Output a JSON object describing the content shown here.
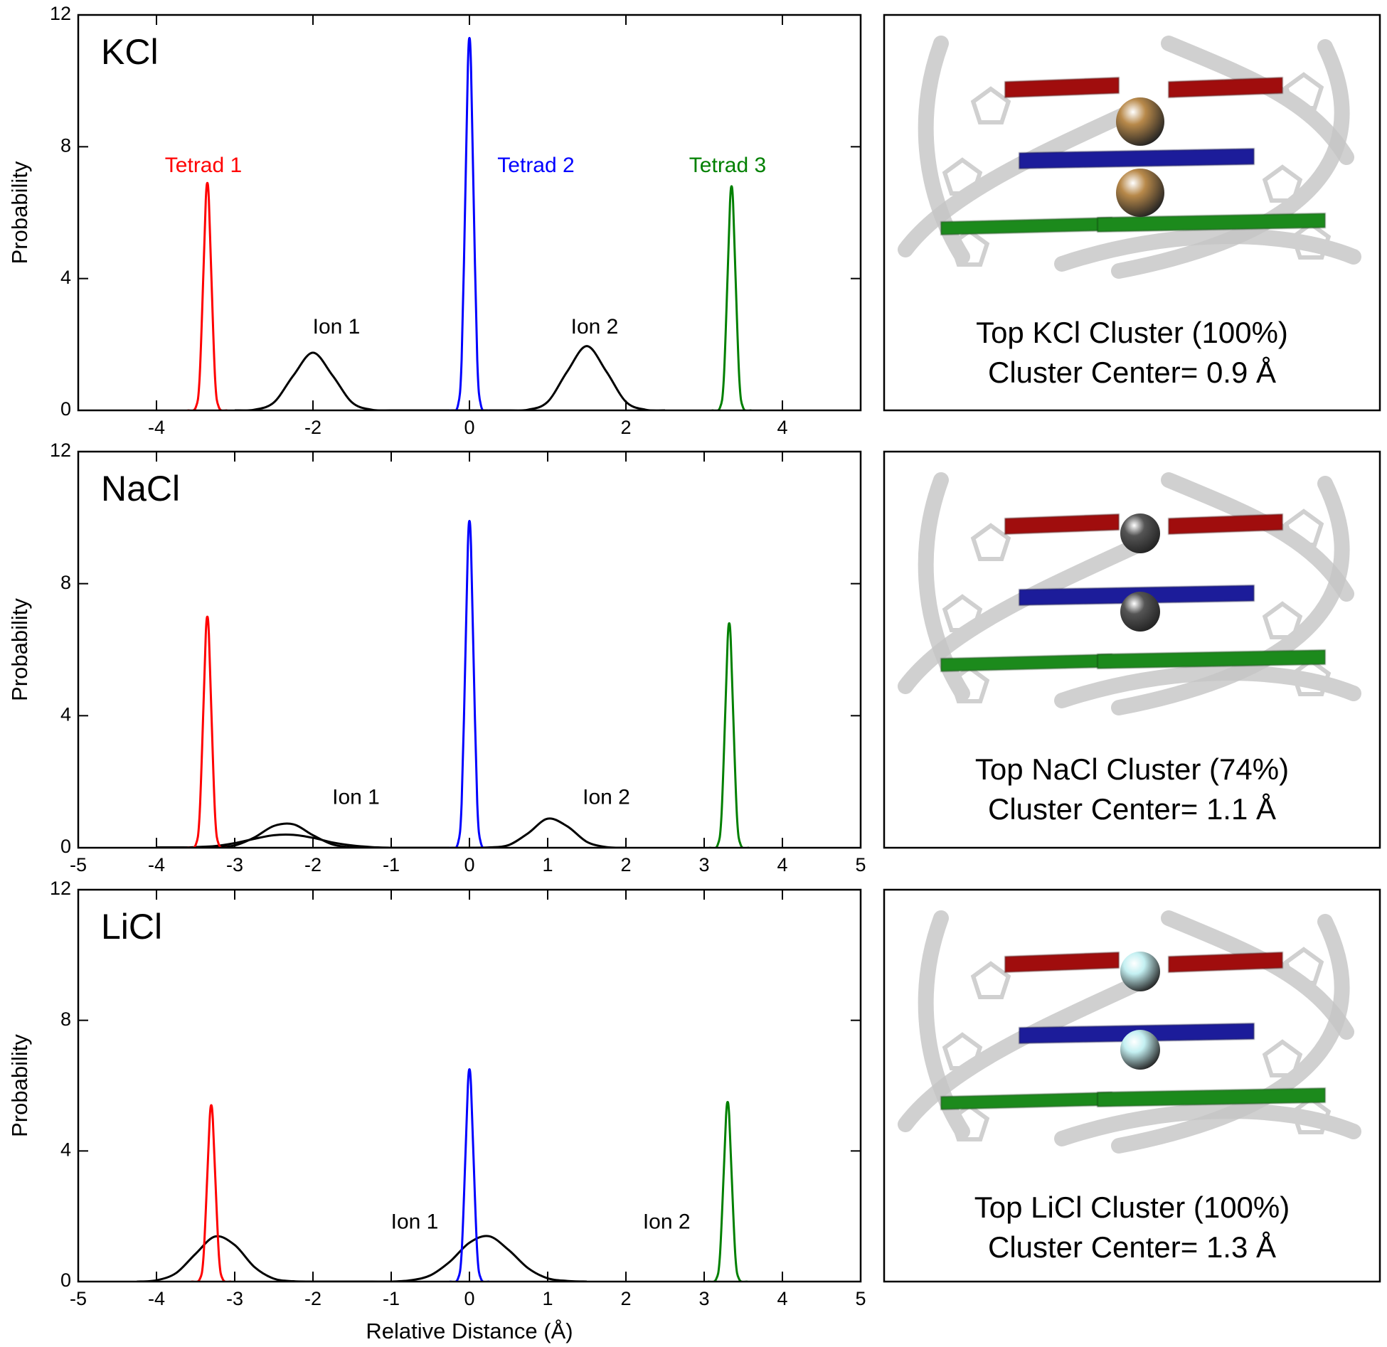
{
  "chart_data": [
    {
      "type": "line",
      "label": "KCl",
      "ylabel": "Probability",
      "xlim": [
        -5,
        5
      ],
      "ylim": [
        0,
        12
      ],
      "xticks": [
        -4,
        -2,
        0,
        2,
        4
      ],
      "yticks": [
        0,
        4,
        8,
        12
      ],
      "annotations": [
        {
          "text": "Tetrad 1",
          "color": "#ff0000"
        },
        {
          "text": "Tetrad 2",
          "color": "#0000ff"
        },
        {
          "text": "Tetrad 3",
          "color": "#008000"
        },
        {
          "text": "Ion 1",
          "color": "#000000"
        },
        {
          "text": "Ion 2",
          "color": "#000000"
        }
      ],
      "series": [
        {
          "color": "#000000",
          "x": [
            -3,
            -2.75,
            -2.5,
            -2.25,
            -2,
            -1.75,
            -1.5,
            -1.25,
            -1,
            -0.75,
            -0.5,
            -0.25,
            0,
            0.25,
            0.5,
            0.75,
            1,
            1.25,
            1.5,
            1.75,
            2,
            2.25,
            2.5
          ],
          "values": [
            0,
            0.02,
            0.24,
            1.06,
            1.75,
            1.06,
            0.24,
            0.02,
            0,
            0,
            0,
            0,
            0,
            0,
            0,
            0.02,
            0.26,
            1.18,
            1.95,
            1.18,
            0.26,
            0.02,
            0
          ]
        },
        {
          "color": "#ff0000",
          "x": [
            -3.6,
            -3.5,
            -3.45,
            -3.4,
            -3.37,
            -3.35,
            -3.33,
            -3.3,
            -3.25,
            -3.2,
            -3.1
          ],
          "values": [
            0,
            0.08,
            0.93,
            4.19,
            6.37,
            6.9,
            6.37,
            4.19,
            0.93,
            0.08,
            0
          ]
        },
        {
          "color": "#0000ff",
          "x": [
            -0.25,
            -0.15,
            -0.1,
            -0.05,
            -0.02,
            0,
            0.02,
            0.05,
            0.1,
            0.15,
            0.25
          ],
          "values": [
            0,
            0.12,
            1.53,
            6.86,
            10.43,
            11.3,
            10.43,
            6.86,
            1.53,
            0.12,
            0
          ]
        },
        {
          "color": "#008000",
          "x": [
            3.1,
            3.2,
            3.25,
            3.3,
            3.33,
            3.35,
            3.37,
            3.4,
            3.45,
            3.5,
            3.6
          ],
          "values": [
            0,
            0.07,
            0.92,
            4.13,
            6.28,
            6.8,
            6.28,
            4.13,
            0.92,
            0.07,
            0
          ]
        }
      ],
      "panel": {
        "caption": [
          "Top KCl Cluster (100%)",
          "Cluster Center= 0.9 Å"
        ],
        "ion_color": "#b8894a"
      }
    },
    {
      "type": "line",
      "label": "NaCl",
      "ylabel": "Probability",
      "xlim": [
        -5,
        5
      ],
      "ylim": [
        0,
        12
      ],
      "xticks": [
        -5,
        -4,
        -3,
        -2,
        -1,
        0,
        1,
        2,
        3,
        4,
        5
      ],
      "yticks": [
        0,
        4,
        8,
        12
      ],
      "annotations": [
        {
          "text": "Ion 1",
          "color": "#000000"
        },
        {
          "text": "Ion 2",
          "color": "#000000"
        }
      ],
      "series": [
        {
          "color": "#000000",
          "x": [
            -4,
            -3.75,
            -3.5,
            -3.25,
            -3,
            -2.75,
            -2.5,
            -2.25,
            -2,
            -1.75,
            -1.5,
            -1.25,
            -1,
            -0.75,
            -0.5,
            -0.25,
            0,
            0.25,
            0.5,
            0.75,
            1,
            1.25,
            1.5,
            1.75,
            2
          ],
          "values": [
            0.01,
            0.01,
            0.01,
            0.02,
            0.07,
            0.31,
            0.66,
            0.71,
            0.38,
            0.1,
            0.01,
            0,
            0,
            0,
            0,
            0,
            0,
            0.01,
            0.08,
            0.44,
            0.88,
            0.65,
            0.18,
            0.02,
            0
          ]
        },
        {
          "color": "#000000",
          "x": [
            -4,
            -3.75,
            -3.5,
            -3.25,
            -3,
            -2.75,
            -2.5,
            -2.25,
            -2,
            -1.75,
            -1.5,
            -1.25,
            -1
          ],
          "values": [
            0,
            0,
            0.02,
            0.05,
            0.14,
            0.27,
            0.38,
            0.39,
            0.3,
            0.16,
            0.07,
            0.02,
            0
          ]
        },
        {
          "color": "#ff0000",
          "x": [
            -3.6,
            -3.5,
            -3.45,
            -3.4,
            -3.37,
            -3.35,
            -3.33,
            -3.3,
            -3.25,
            -3.2,
            -3.1
          ],
          "values": [
            0,
            0.08,
            0.95,
            4.25,
            6.46,
            7.0,
            6.46,
            4.25,
            0.95,
            0.08,
            0
          ]
        },
        {
          "color": "#0000ff",
          "x": [
            -0.25,
            -0.15,
            -0.1,
            -0.05,
            -0.02,
            0,
            0.02,
            0.05,
            0.1,
            0.15,
            0.25
          ],
          "values": [
            0,
            0.11,
            1.34,
            6.01,
            9.14,
            9.9,
            9.14,
            6.01,
            1.34,
            0.11,
            0
          ]
        },
        {
          "color": "#008000",
          "x": [
            3.07,
            3.17,
            3.22,
            3.27,
            3.3,
            3.32,
            3.34,
            3.37,
            3.42,
            3.47,
            3.57
          ],
          "values": [
            0,
            0.07,
            0.92,
            4.13,
            6.28,
            6.8,
            6.28,
            4.13,
            0.92,
            0.07,
            0
          ]
        }
      ],
      "panel": {
        "caption": [
          "Top NaCl Cluster (74%)",
          "Cluster Center= 1.1 Å"
        ],
        "ion_color": "#555555"
      }
    },
    {
      "type": "line",
      "label": "LiCl",
      "ylabel": "Probability",
      "xlabel": "Relative Distance (Å)",
      "xlim": [
        -5,
        5
      ],
      "ylim": [
        0,
        12
      ],
      "xticks": [
        -5,
        -4,
        -3,
        -2,
        -1,
        0,
        1,
        2,
        3,
        4,
        5
      ],
      "yticks": [
        0,
        4,
        8,
        12
      ],
      "annotations": [
        {
          "text": "Ion 1",
          "color": "#000000"
        },
        {
          "text": "Ion 2",
          "color": "#000000"
        }
      ],
      "series": [
        {
          "color": "#000000",
          "x": [
            -4.25,
            -4,
            -3.75,
            -3.5,
            -3.25,
            -3,
            -2.75,
            -2.5,
            -2.25,
            -2,
            -1.75,
            -1.5,
            -1.25,
            -1,
            -0.75,
            -0.5,
            -0.25,
            0,
            0.25,
            0.5,
            0.75,
            1,
            1.25,
            1.5
          ],
          "values": [
            0,
            0.04,
            0.26,
            0.85,
            1.38,
            1.12,
            0.45,
            0.09,
            0.01,
            0,
            0,
            0,
            0,
            0,
            0.04,
            0.19,
            0.61,
            1.19,
            1.39,
            0.97,
            0.41,
            0.1,
            0.02,
            0
          ]
        },
        {
          "color": "#ff0000",
          "x": [
            -3.55,
            -3.45,
            -3.4,
            -3.35,
            -3.32,
            -3.3,
            -3.28,
            -3.25,
            -3.2,
            -3.15,
            -3.05
          ],
          "values": [
            0,
            0.06,
            0.73,
            3.28,
            4.98,
            5.4,
            4.98,
            3.28,
            0.73,
            0.06,
            0
          ]
        },
        {
          "color": "#0000ff",
          "x": [
            -0.25,
            -0.15,
            -0.1,
            -0.05,
            -0.02,
            0,
            0.02,
            0.05,
            0.1,
            0.15,
            0.25
          ],
          "values": [
            0,
            0.07,
            0.88,
            3.95,
            6.0,
            6.5,
            6.0,
            3.95,
            0.88,
            0.07,
            0
          ]
        },
        {
          "color": "#008000",
          "x": [
            3.05,
            3.15,
            3.2,
            3.25,
            3.28,
            3.3,
            3.32,
            3.35,
            3.4,
            3.45,
            3.55
          ],
          "values": [
            0,
            0.06,
            0.74,
            3.34,
            5.08,
            5.5,
            5.08,
            3.34,
            0.74,
            0.06,
            0
          ]
        }
      ],
      "panel": {
        "caption": [
          "Top LiCl Cluster (100%)",
          "Cluster Center= 1.3 Å"
        ],
        "ion_color": "#c4f0f2"
      }
    }
  ]
}
